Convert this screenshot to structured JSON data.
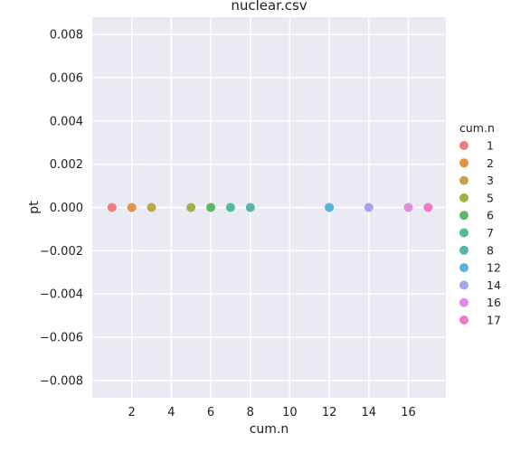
{
  "chart_data": {
    "type": "scatter",
    "title": "nuclear.csv",
    "xlabel": "cum.n",
    "ylabel": "pt",
    "xlim": [
      0.0,
      17.9
    ],
    "ylim": [
      -0.0088,
      0.0088
    ],
    "x_ticks": [
      2,
      4,
      6,
      8,
      10,
      12,
      14,
      16
    ],
    "x_tick_labels": [
      "2",
      "4",
      "6",
      "8",
      "10",
      "12",
      "14",
      "16"
    ],
    "y_ticks": [
      0.008,
      0.006,
      0.004,
      0.002,
      0.0,
      -0.002,
      -0.004,
      -0.006,
      -0.008
    ],
    "y_tick_labels": [
      "0.008",
      "0.006",
      "0.004",
      "0.002",
      "0.000",
      "−0.002",
      "−0.004",
      "−0.006",
      "−0.008"
    ],
    "grid": true,
    "background": "#eaeaf2",
    "grid_color": "#ffffff",
    "legend_title": "cum.n",
    "legend_position": "right",
    "series": [
      {
        "name": "1",
        "color": "#f37b80",
        "x": [
          1
        ],
        "y": [
          0.0
        ]
      },
      {
        "name": "2",
        "color": "#e29346",
        "x": [
          2
        ],
        "y": [
          0.0
        ]
      },
      {
        "name": "3",
        "color": "#bda64b",
        "x": [
          3
        ],
        "y": [
          0.0
        ]
      },
      {
        "name": "5",
        "color": "#a3b045",
        "x": [
          5
        ],
        "y": [
          0.0
        ]
      },
      {
        "name": "6",
        "color": "#5cba66",
        "x": [
          6
        ],
        "y": [
          0.0
        ]
      },
      {
        "name": "7",
        "color": "#52bb9b",
        "x": [
          7
        ],
        "y": [
          0.0
        ]
      },
      {
        "name": "8",
        "color": "#55b5ad",
        "x": [
          8
        ],
        "y": [
          0.0
        ]
      },
      {
        "name": "12",
        "color": "#56b3d9",
        "x": [
          12
        ],
        "y": [
          0.0
        ]
      },
      {
        "name": "14",
        "color": "#a2a4ef",
        "x": [
          14
        ],
        "y": [
          0.0
        ]
      },
      {
        "name": "16",
        "color": "#e18be5",
        "x": [
          16
        ],
        "y": [
          0.0
        ]
      },
      {
        "name": "17",
        "color": "#f277c9",
        "x": [
          17
        ],
        "y": [
          0.0
        ]
      }
    ]
  }
}
